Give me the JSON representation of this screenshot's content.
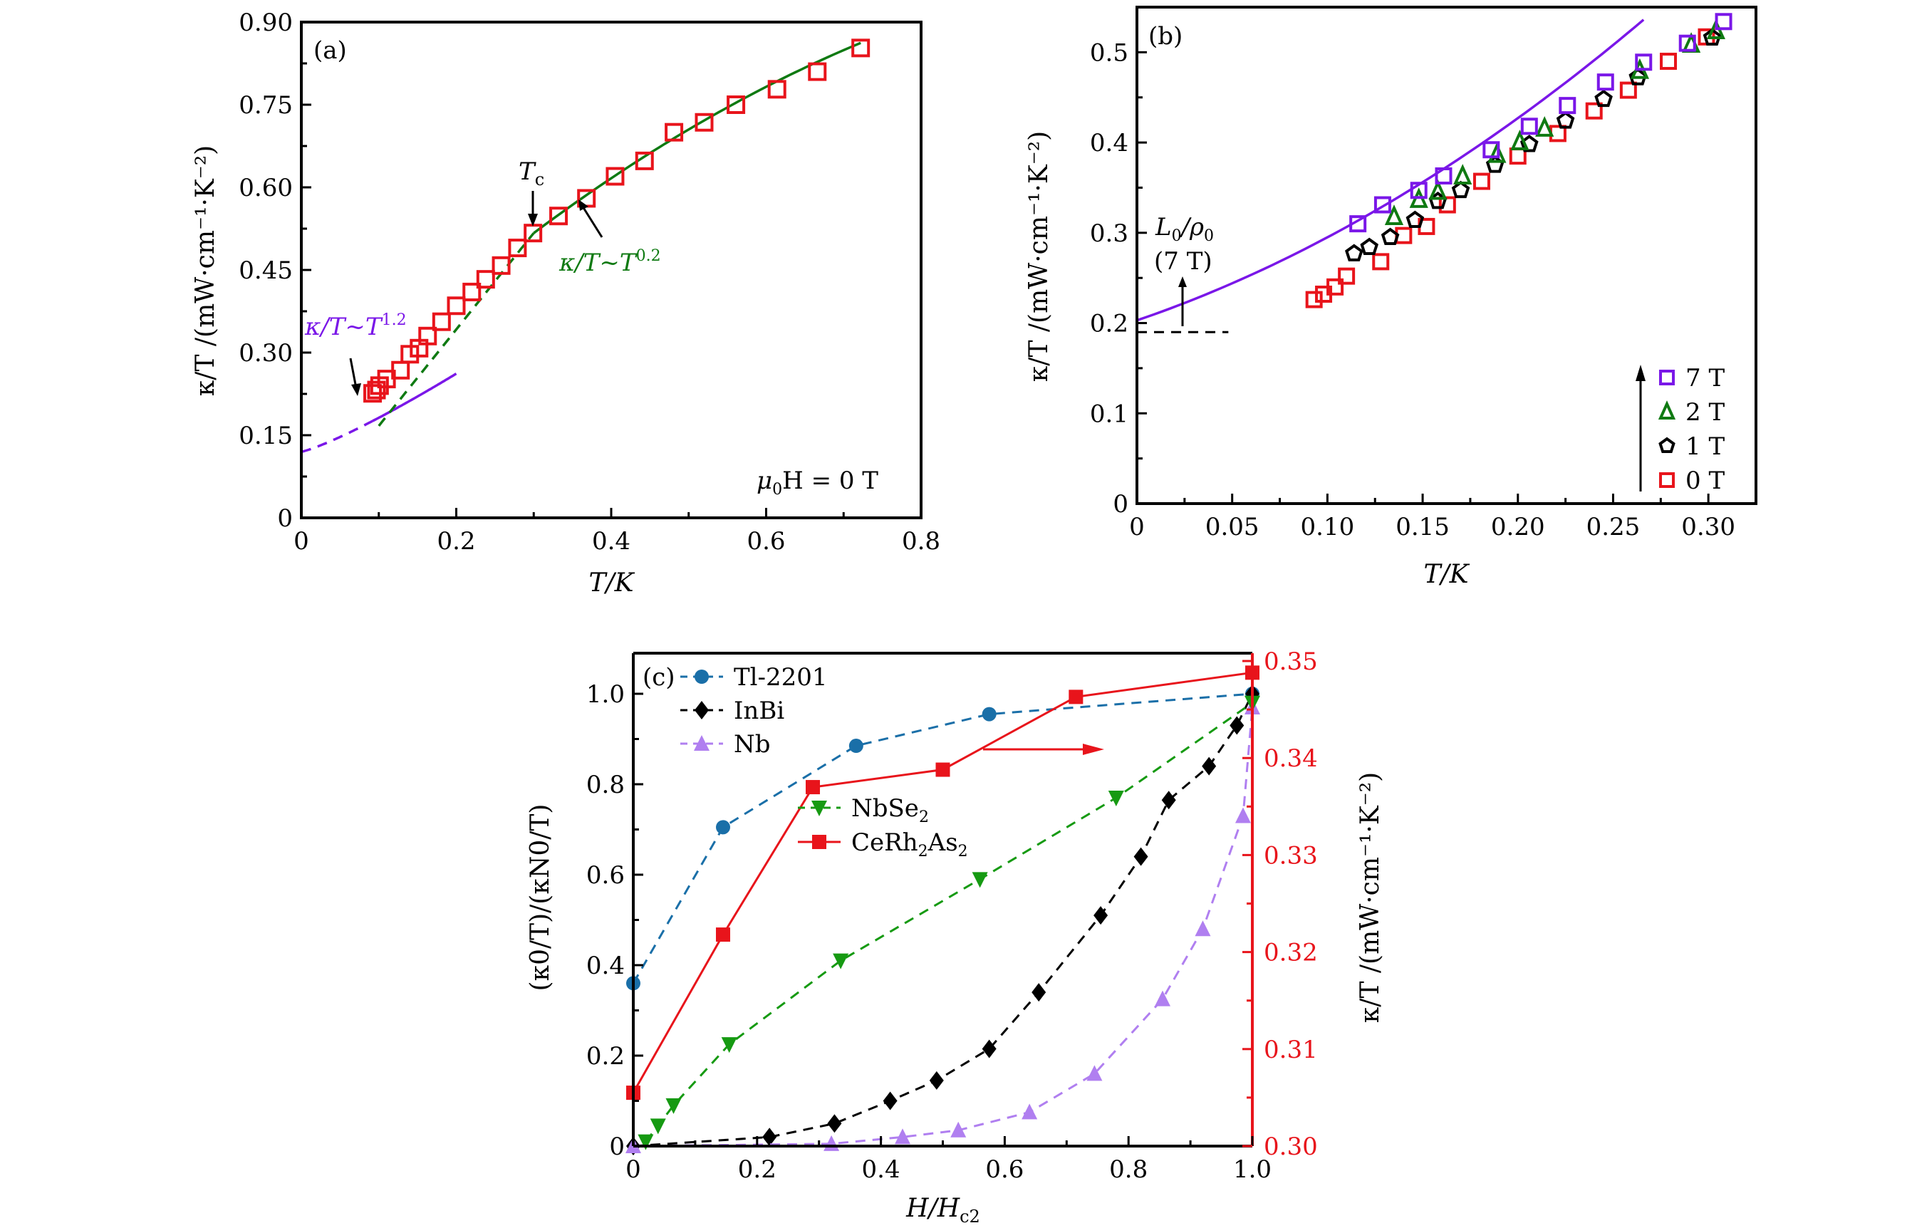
{
  "figure": {
    "panels": [
      "(a)",
      "(b)",
      "(c)"
    ]
  },
  "chart_data": [
    {
      "id": "a",
      "type": "scatter",
      "panel_label": "(a)",
      "xlabel": "T/K",
      "ylabel": "κ/T /(mW·cm⁻¹·K⁻²)",
      "xlim": [
        0,
        0.8
      ],
      "ylim": [
        0,
        0.9
      ],
      "xticks": [
        0,
        0.2,
        0.4,
        0.6,
        0.8
      ],
      "xtick_labels": [
        "0",
        "0.2",
        "0.4",
        "0.6",
        "0.8"
      ],
      "yticks": [
        0,
        0.15,
        0.3,
        0.45,
        0.6,
        0.75,
        0.9
      ],
      "ytick_labels": [
        "0",
        "0.15",
        "0.30",
        "0.45",
        "0.60",
        "0.75",
        "0.90"
      ],
      "series": [
        {
          "name": "data (0 T)",
          "marker": "open-square",
          "color": "#e8141b",
          "x": [
            0.092,
            0.097,
            0.101,
            0.11,
            0.128,
            0.14,
            0.152,
            0.163,
            0.181,
            0.2,
            0.22,
            0.238,
            0.258,
            0.279,
            0.299,
            0.332,
            0.368,
            0.405,
            0.443,
            0.481,
            0.52,
            0.561,
            0.614,
            0.666,
            0.722
          ],
          "y": [
            0.226,
            0.232,
            0.24,
            0.252,
            0.268,
            0.297,
            0.308,
            0.33,
            0.356,
            0.385,
            0.41,
            0.433,
            0.458,
            0.49,
            0.517,
            0.548,
            0.58,
            0.62,
            0.648,
            0.7,
            0.718,
            0.75,
            0.778,
            0.81,
            0.853
          ]
        }
      ],
      "fits": [
        {
          "name": "κ/T~T^1.2",
          "color": "#7a17e8",
          "style": "solid",
          "x_range": [
            0.092,
            0.2
          ],
          "exponent": 1.2,
          "intercept": 0.12,
          "coef": 1.88,
          "extrapolation": {
            "style": "dashed",
            "x_range": [
              0,
              0.092
            ]
          }
        },
        {
          "name": "κ/T~T^0.2",
          "color": "#0f7a12",
          "style": "solid",
          "x_range": [
            0.3,
            0.722
          ],
          "dashed_range": [
            0.1,
            0.3
          ]
        }
      ],
      "annotations": {
        "tc_label": "T",
        "tc_sub": "c",
        "tc_x": 0.3,
        "fit_low_label": "κ/T~T",
        "fit_low_exp": "1.2",
        "fit_high_label": "κ/T~T",
        "fit_high_exp": "0.2",
        "field_label_mu": "μ",
        "field_label_sub": "0",
        "field_label_rest": "H = 0 T"
      }
    },
    {
      "id": "b",
      "type": "scatter",
      "panel_label": "(b)",
      "xlabel": "T/K",
      "ylabel": "κ/T /(mW·cm⁻¹·K⁻²)",
      "xlim": [
        0,
        0.325
      ],
      "ylim": [
        0,
        0.55
      ],
      "xticks": [
        0,
        0.05,
        0.1,
        0.15,
        0.2,
        0.25,
        0.3
      ],
      "xtick_labels": [
        "0",
        "0.05",
        "0.10",
        "0.15",
        "0.20",
        "0.25",
        "0.30"
      ],
      "yticks": [
        0,
        0.1,
        0.2,
        0.3,
        0.4,
        0.5
      ],
      "ytick_labels": [
        "0",
        "0.1",
        "0.2",
        "0.3",
        "0.4",
        "0.5"
      ],
      "series": [
        {
          "name": "7 T",
          "marker": "open-square",
          "color": "#7a17e8",
          "x": [
            0.116,
            0.129,
            0.148,
            0.161,
            0.186,
            0.206,
            0.226,
            0.246,
            0.266,
            0.289,
            0.308
          ],
          "y": [
            0.31,
            0.331,
            0.347,
            0.363,
            0.392,
            0.418,
            0.441,
            0.467,
            0.489,
            0.51,
            0.534
          ]
        },
        {
          "name": "2 T",
          "marker": "open-triangle",
          "color": "#0f7a12",
          "x": [
            0.135,
            0.148,
            0.158,
            0.171,
            0.189,
            0.201,
            0.214,
            0.264,
            0.291,
            0.304
          ],
          "y": [
            0.318,
            0.337,
            0.346,
            0.363,
            0.387,
            0.401,
            0.416,
            0.48,
            0.509,
            0.524
          ]
        },
        {
          "name": "1 T",
          "marker": "open-pentagon",
          "color": "#000000",
          "x": [
            0.114,
            0.122,
            0.133,
            0.146,
            0.158,
            0.17,
            0.188,
            0.206,
            0.225,
            0.245,
            0.263,
            0.302
          ],
          "y": [
            0.277,
            0.284,
            0.295,
            0.314,
            0.335,
            0.347,
            0.375,
            0.398,
            0.424,
            0.448,
            0.472,
            0.516
          ]
        },
        {
          "name": "0 T",
          "marker": "open-square",
          "color": "#e8141b",
          "x": [
            0.093,
            0.098,
            0.104,
            0.11,
            0.128,
            0.14,
            0.152,
            0.163,
            0.181,
            0.2,
            0.221,
            0.24,
            0.258,
            0.279,
            0.299
          ],
          "y": [
            0.226,
            0.232,
            0.24,
            0.252,
            0.268,
            0.297,
            0.307,
            0.331,
            0.357,
            0.385,
            0.41,
            0.435,
            0.458,
            0.49,
            0.517
          ]
        }
      ],
      "fits": [
        {
          "name": "7 T fit",
          "color": "#7a17e8",
          "style": "solid",
          "x_range": [
            0,
            0.266
          ]
        }
      ],
      "legend": {
        "placement": "bottom-right",
        "entries": [
          "7 T",
          "2 T",
          "1 T",
          "0 T"
        ]
      },
      "annotations": {
        "l0_label_L": "L",
        "l0_label_sub1": "0",
        "l0_label_rho": "/ρ",
        "l0_label_sub2": "0",
        "l0_field": "(7 T)",
        "l0_value": 0.19
      }
    },
    {
      "id": "c",
      "type": "line",
      "panel_label": "(c)",
      "xlabel": "H/H",
      "xlabel_sub": "c2",
      "ylabel": "(κ0/T)/(κN0/T)",
      "ylabel_right": "κ/T /(mW·cm⁻¹·K⁻²)",
      "xlim": [
        0,
        1.0
      ],
      "ylim": [
        0,
        1.1
      ],
      "ylim_right": [
        0.3,
        0.35
      ],
      "xticks": [
        0,
        0.2,
        0.4,
        0.6,
        0.8,
        1.0
      ],
      "xtick_labels": [
        "0",
        "0.2",
        "0.4",
        "0.6",
        "0.8",
        "1.0"
      ],
      "yticks": [
        0,
        0.2,
        0.4,
        0.6,
        0.8,
        1.0
      ],
      "ytick_labels": [
        "0",
        "0.2",
        "0.4",
        "0.6",
        "0.8",
        "1.0"
      ],
      "yticks_right": [
        0.3,
        0.31,
        0.32,
        0.33,
        0.34,
        0.35
      ],
      "ytick_labels_right": [
        "0.30",
        "0.31",
        "0.32",
        "0.33",
        "0.34",
        "0.35"
      ],
      "series": [
        {
          "name": "Tl-2201",
          "marker": "filled-circle",
          "color": "#1a6fa8",
          "style": "dashed",
          "axis": "left",
          "x": [
            0,
            0.145,
            0.36,
            0.575,
            1.0
          ],
          "y": [
            0.36,
            0.705,
            0.885,
            0.955,
            1.0
          ]
        },
        {
          "name": "InBi",
          "marker": "filled-diamond",
          "color": "#000000",
          "style": "dashed",
          "axis": "left",
          "x": [
            0,
            0.22,
            0.325,
            0.415,
            0.49,
            0.575,
            0.655,
            0.755,
            0.82,
            0.865,
            0.93,
            0.975,
            1.0
          ],
          "y": [
            0,
            0.02,
            0.05,
            0.1,
            0.145,
            0.215,
            0.34,
            0.51,
            0.64,
            0.765,
            0.84,
            0.93,
            1.0
          ]
        },
        {
          "name": "Nb",
          "marker": "filled-triangle-up",
          "color": "#b07ff0",
          "style": "dashed",
          "axis": "left",
          "x": [
            0,
            0.32,
            0.435,
            0.525,
            0.64,
            0.745,
            0.855,
            0.92,
            0.985,
            1.0
          ],
          "y": [
            0,
            0.005,
            0.02,
            0.035,
            0.075,
            0.16,
            0.325,
            0.48,
            0.73,
            0.97
          ]
        },
        {
          "name": "NbSe2",
          "marker": "filled-triangle-down",
          "color": "#169a12",
          "style": "dashed",
          "axis": "left",
          "x": [
            0.02,
            0.04,
            0.065,
            0.155,
            0.335,
            0.56,
            0.78,
            1.0
          ],
          "y": [
            0.01,
            0.045,
            0.09,
            0.225,
            0.41,
            0.59,
            0.77,
            0.98
          ]
        },
        {
          "name": "CeRh2As2",
          "marker": "filled-square",
          "color": "#e8141b",
          "style": "solid",
          "axis": "right",
          "x": [
            0,
            0.145,
            0.29,
            0.5,
            0.715,
            1.0
          ],
          "y": [
            0.3055,
            0.3218,
            0.337,
            0.3388,
            0.3463,
            0.3488
          ]
        }
      ],
      "legend": {
        "placement": "top-left",
        "entries": [
          {
            "label": "Tl-2201"
          },
          {
            "label": "InBi"
          },
          {
            "label": "Nb"
          },
          {
            "label_main": "NbSe",
            "label_sub": "2"
          },
          {
            "label_main": "CeRh",
            "label_sub": "2",
            "label_mid": "As",
            "label_sub2": "2"
          }
        ]
      },
      "annotations": {
        "right_axis_arrow": "points to right axis"
      }
    }
  ]
}
